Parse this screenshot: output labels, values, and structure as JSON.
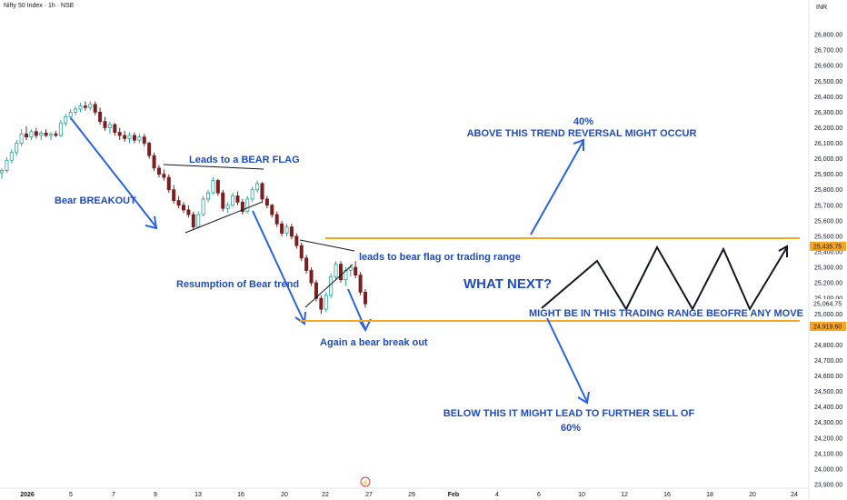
{
  "title": "Nifty 50 Index · 1h · NSE",
  "chart_data": {
    "type": "candlestick",
    "currency": "INR",
    "ylim": [
      23900,
      26900
    ],
    "y_ticks": [
      "26,800.00",
      "26,700.00",
      "26,600.00",
      "26,500.00",
      "26,400.00",
      "26,300.00",
      "26,200.00",
      "26,100.00",
      "26,000.00",
      "25,900.00",
      "25,800.00",
      "25,700.00",
      "25,600.00",
      "25,500.00",
      "25,400.00",
      "25,300.00",
      "25,200.00",
      "25,100.00",
      "25,000.00",
      "24,800.00",
      "24,700.00",
      "24,600.00",
      "24,500.00",
      "24,400.00",
      "24,300.00",
      "24,200.00",
      "24,100.00",
      "24,000.00",
      "23,900.00"
    ],
    "x_ticks": [
      "2026",
      "5",
      "7",
      "9",
      "13",
      "16",
      "20",
      "22",
      "27",
      "29",
      "Feb",
      "4",
      "6",
      "10",
      "12",
      "16",
      "18",
      "20",
      "24"
    ],
    "price_labels": [
      {
        "text": "25,435.75",
        "value": 25435.75,
        "color": "#f5a623"
      },
      {
        "text": "25,064.75",
        "value": 25064.75,
        "color": "#131722"
      },
      {
        "text": "24,919.60",
        "value": 24919.6,
        "color": "#f5a623"
      }
    ],
    "levels": [
      {
        "value": 25435.75,
        "from_day": 22.2,
        "color": "#f5a623"
      },
      {
        "value": 24919.6,
        "from_day": 20.7,
        "color": "#f5a623"
      }
    ],
    "candles": [
      {
        "o": 25910,
        "h": 25940,
        "l": 25870,
        "c": 25925
      },
      {
        "o": 25925,
        "h": 26010,
        "l": 25910,
        "c": 25990
      },
      {
        "o": 25990,
        "h": 26060,
        "l": 25970,
        "c": 26040
      },
      {
        "o": 26040,
        "h": 26120,
        "l": 26020,
        "c": 26100
      },
      {
        "o": 26100,
        "h": 26190,
        "l": 26080,
        "c": 26160
      },
      {
        "o": 26160,
        "h": 26210,
        "l": 26120,
        "c": 26140
      },
      {
        "o": 26140,
        "h": 26190,
        "l": 26120,
        "c": 26175
      },
      {
        "o": 26175,
        "h": 26200,
        "l": 26130,
        "c": 26150
      },
      {
        "o": 26150,
        "h": 26180,
        "l": 26120,
        "c": 26165
      },
      {
        "o": 26165,
        "h": 26190,
        "l": 26140,
        "c": 26150
      },
      {
        "o": 26150,
        "h": 26170,
        "l": 26120,
        "c": 26160
      },
      {
        "o": 26160,
        "h": 26180,
        "l": 26140,
        "c": 26150
      },
      {
        "o": 26150,
        "h": 26250,
        "l": 26140,
        "c": 26230
      },
      {
        "o": 26230,
        "h": 26290,
        "l": 26210,
        "c": 26270
      },
      {
        "o": 26270,
        "h": 26320,
        "l": 26250,
        "c": 26300
      },
      {
        "o": 26300,
        "h": 26340,
        "l": 26280,
        "c": 26320
      },
      {
        "o": 26320,
        "h": 26360,
        "l": 26300,
        "c": 26340
      },
      {
        "o": 26340,
        "h": 26370,
        "l": 26310,
        "c": 26330
      },
      {
        "o": 26330,
        "h": 26370,
        "l": 26310,
        "c": 26350
      },
      {
        "o": 26350,
        "h": 26370,
        "l": 26280,
        "c": 26300
      },
      {
        "o": 26300,
        "h": 26330,
        "l": 26220,
        "c": 26240
      },
      {
        "o": 26240,
        "h": 26270,
        "l": 26180,
        "c": 26200
      },
      {
        "o": 26200,
        "h": 26240,
        "l": 26160,
        "c": 26220
      },
      {
        "o": 26220,
        "h": 26230,
        "l": 26150,
        "c": 26170
      },
      {
        "o": 26170,
        "h": 26200,
        "l": 26120,
        "c": 26150
      },
      {
        "o": 26150,
        "h": 26180,
        "l": 26110,
        "c": 26130
      },
      {
        "o": 26130,
        "h": 26170,
        "l": 26100,
        "c": 26150
      },
      {
        "o": 26150,
        "h": 26170,
        "l": 26100,
        "c": 26120
      },
      {
        "o": 26120,
        "h": 26160,
        "l": 26100,
        "c": 26140
      },
      {
        "o": 26140,
        "h": 26160,
        "l": 26080,
        "c": 26100
      },
      {
        "o": 26100,
        "h": 26110,
        "l": 26000,
        "c": 26020
      },
      {
        "o": 26020,
        "h": 26040,
        "l": 25920,
        "c": 25940
      },
      {
        "o": 25940,
        "h": 25960,
        "l": 25880,
        "c": 25900
      },
      {
        "o": 25900,
        "h": 25930,
        "l": 25860,
        "c": 25880
      },
      {
        "o": 25880,
        "h": 25900,
        "l": 25780,
        "c": 25800
      },
      {
        "o": 25800,
        "h": 25830,
        "l": 25710,
        "c": 25730
      },
      {
        "o": 25730,
        "h": 25760,
        "l": 25680,
        "c": 25700
      },
      {
        "o": 25700,
        "h": 25720,
        "l": 25650,
        "c": 25670
      },
      {
        "o": 25670,
        "h": 25700,
        "l": 25620,
        "c": 25640
      },
      {
        "o": 25640,
        "h": 25660,
        "l": 25540,
        "c": 25560
      },
      {
        "o": 25560,
        "h": 25660,
        "l": 25550,
        "c": 25640
      },
      {
        "o": 25640,
        "h": 25760,
        "l": 25630,
        "c": 25740
      },
      {
        "o": 25740,
        "h": 25800,
        "l": 25720,
        "c": 25780
      },
      {
        "o": 25780,
        "h": 25880,
        "l": 25770,
        "c": 25860
      },
      {
        "o": 25860,
        "h": 25870,
        "l": 25760,
        "c": 25780
      },
      {
        "o": 25780,
        "h": 25800,
        "l": 25660,
        "c": 25680
      },
      {
        "o": 25680,
        "h": 25720,
        "l": 25650,
        "c": 25700
      },
      {
        "o": 25700,
        "h": 25780,
        "l": 25690,
        "c": 25760
      },
      {
        "o": 25760,
        "h": 25790,
        "l": 25700,
        "c": 25720
      },
      {
        "o": 25720,
        "h": 25740,
        "l": 25640,
        "c": 25660
      },
      {
        "o": 25660,
        "h": 25760,
        "l": 25650,
        "c": 25740
      },
      {
        "o": 25740,
        "h": 25820,
        "l": 25720,
        "c": 25800
      },
      {
        "o": 25800,
        "h": 25860,
        "l": 25780,
        "c": 25840
      },
      {
        "o": 25840,
        "h": 25850,
        "l": 25720,
        "c": 25740
      },
      {
        "o": 25740,
        "h": 25760,
        "l": 25680,
        "c": 25700
      },
      {
        "o": 25700,
        "h": 25710,
        "l": 25620,
        "c": 25640
      },
      {
        "o": 25640,
        "h": 25660,
        "l": 25560,
        "c": 25580
      },
      {
        "o": 25580,
        "h": 25600,
        "l": 25500,
        "c": 25520
      },
      {
        "o": 25520,
        "h": 25580,
        "l": 25500,
        "c": 25560
      },
      {
        "o": 25560,
        "h": 25580,
        "l": 25480,
        "c": 25500
      },
      {
        "o": 25500,
        "h": 25520,
        "l": 25420,
        "c": 25440
      },
      {
        "o": 25440,
        "h": 25460,
        "l": 25340,
        "c": 25360
      },
      {
        "o": 25360,
        "h": 25380,
        "l": 25260,
        "c": 25280
      },
      {
        "o": 25280,
        "h": 25300,
        "l": 25180,
        "c": 25200
      },
      {
        "o": 25200,
        "h": 25220,
        "l": 25080,
        "c": 25100
      },
      {
        "o": 25100,
        "h": 25120,
        "l": 25000,
        "c": 25030
      },
      {
        "o": 25030,
        "h": 25140,
        "l": 25010,
        "c": 25120
      },
      {
        "o": 25120,
        "h": 25260,
        "l": 25100,
        "c": 25240
      },
      {
        "o": 25240,
        "h": 25340,
        "l": 25220,
        "c": 25320
      },
      {
        "o": 25320,
        "h": 25340,
        "l": 25200,
        "c": 25220
      },
      {
        "o": 25220,
        "h": 25300,
        "l": 25180,
        "c": 25280
      },
      {
        "o": 25280,
        "h": 25320,
        "l": 25240,
        "c": 25300
      },
      {
        "o": 25300,
        "h": 25340,
        "l": 25230,
        "c": 25250
      },
      {
        "o": 25250,
        "h": 25270,
        "l": 25120,
        "c": 25140
      },
      {
        "o": 25140,
        "h": 25160,
        "l": 25040,
        "c": 25064.75
      }
    ]
  },
  "annotations": {
    "bear_breakout": "Bear BREAKOUT",
    "bear_flag": "Leads to a BEAR FLAG",
    "resumption": "Resumption of Bear trend",
    "flag_or_range": "leads to bear flag or trading range",
    "again_break": "Again a bear break out",
    "pct_up": "40%",
    "above_text": "ABOVE THIS TREND REVERSAL MIGHT OCCUR",
    "what_next": "WHAT NEXT?",
    "range_text": "MIGHT BE IN THIS TRADING RANGE BEOFRE ANY MOVE",
    "below_text": "BELOW THIS IT MIGHT LEAD TO FURTHER SELL OF",
    "pct_down": "60%"
  },
  "colors": {
    "up": "#26a69a",
    "down": "#7a1f1f",
    "annotation": "#1e4bc8",
    "level": "#f5a623"
  }
}
